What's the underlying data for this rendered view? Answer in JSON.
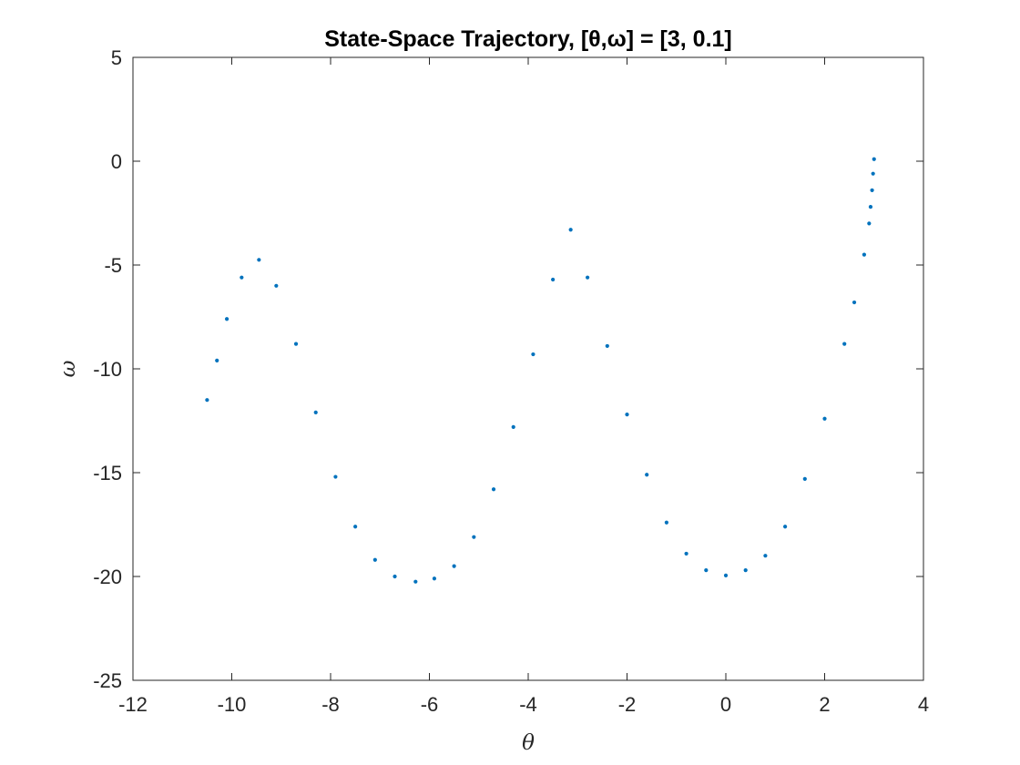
{
  "chart_data": {
    "type": "scatter",
    "title": "State-Space Trajectory, [θ,ω] = [3, 0.1]",
    "xlabel": "θ",
    "ylabel": "ω",
    "xlim": [
      -12,
      4
    ],
    "ylim": [
      -25,
      5
    ],
    "xticks": [
      "-12",
      "-10",
      "-8",
      "-6",
      "-4",
      "-2",
      "0",
      "2",
      "4"
    ],
    "yticks": [
      "5",
      "0",
      "-5",
      "-10",
      "-15",
      "-20",
      "-25"
    ],
    "grid": false,
    "legend": "none",
    "series": [
      {
        "color": "#0072BD",
        "marker": "dot",
        "description_points": [
          [
            3.0,
            0.1
          ],
          [
            2.98,
            -0.6
          ],
          [
            2.96,
            -1.4
          ],
          [
            2.93,
            -2.2
          ],
          [
            2.9,
            -3.0
          ],
          [
            2.8,
            -4.5
          ],
          [
            2.6,
            -6.8
          ],
          [
            2.4,
            -8.8
          ],
          [
            2.0,
            -12.4
          ],
          [
            1.6,
            -15.3
          ],
          [
            1.2,
            -17.6
          ],
          [
            0.8,
            -19.0
          ],
          [
            0.4,
            -19.7
          ],
          [
            0.0,
            -19.95
          ],
          [
            -0.4,
            -19.7
          ],
          [
            -0.8,
            -18.9
          ],
          [
            -1.2,
            -17.4
          ],
          [
            -1.6,
            -15.1
          ],
          [
            -2.0,
            -12.2
          ],
          [
            -2.4,
            -8.9
          ],
          [
            -2.8,
            -5.6
          ],
          [
            -3.14,
            -3.3
          ],
          [
            -3.5,
            -5.7
          ],
          [
            -3.9,
            -9.3
          ],
          [
            -4.3,
            -12.8
          ],
          [
            -4.7,
            -15.8
          ],
          [
            -5.1,
            -18.1
          ],
          [
            -5.5,
            -19.5
          ],
          [
            -5.9,
            -20.1
          ],
          [
            -6.28,
            -20.25
          ],
          [
            -6.7,
            -20.0
          ],
          [
            -7.1,
            -19.2
          ],
          [
            -7.5,
            -17.6
          ],
          [
            -7.9,
            -15.2
          ],
          [
            -8.3,
            -12.1
          ],
          [
            -8.7,
            -8.8
          ],
          [
            -9.1,
            -6.0
          ],
          [
            -9.45,
            -4.75
          ],
          [
            -9.8,
            -5.6
          ],
          [
            -10.1,
            -7.6
          ],
          [
            -10.3,
            -9.6
          ],
          [
            -10.5,
            -11.5
          ]
        ]
      }
    ]
  }
}
